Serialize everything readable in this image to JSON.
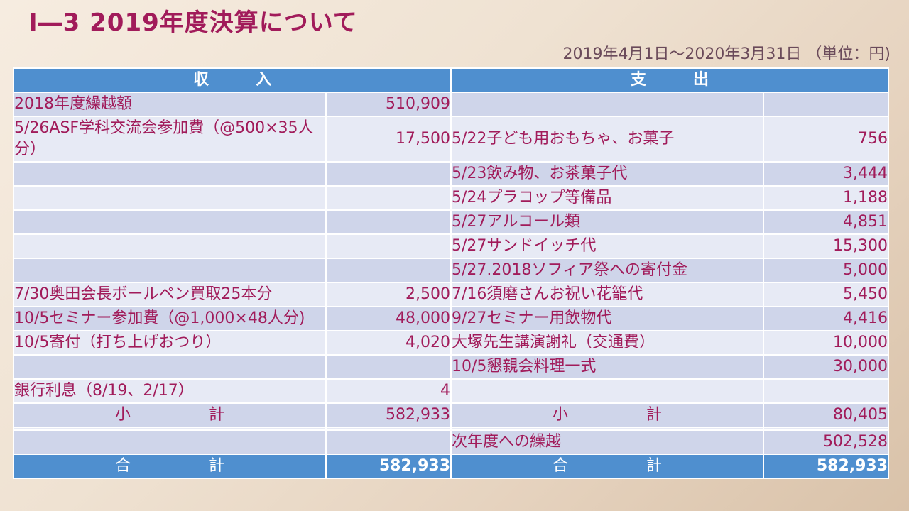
{
  "header": {
    "title": "Ⅰ―3 2019年度決算について",
    "period": "2019年4月1日～2020年3月31日 （単位：円)"
  },
  "table": {
    "columns": [
      "収　　　入",
      "支　　　出"
    ],
    "rows": [
      [
        "2018年度繰越額",
        "510,909",
        null,
        null
      ],
      [
        "5/26ASF学科交流会参加費（@500×35人分）",
        "17,500",
        "5/22子ども用おもちゃ、お菓子",
        "756"
      ],
      [
        null,
        null,
        "5/23飲み物、お茶菓子代",
        "3,444"
      ],
      [
        null,
        null,
        "5/24プラコップ等備品",
        "1,188"
      ],
      [
        null,
        null,
        "5/27アルコール類",
        "4,851"
      ],
      [
        null,
        null,
        "5/27サンドイッチ代",
        "15,300"
      ],
      [
        null,
        null,
        "5/27.2018ソフィア祭への寄付金",
        "5,000"
      ],
      [
        "7/30奥田会長ボールペン買取25本分",
        "2,500",
        "7/16須磨さんお祝い花籠代",
        "5,450"
      ],
      [
        "10/5セミナー参加費（@1,000×48人分)",
        "48,000",
        "9/27セミナー用飲物代",
        "4,416"
      ],
      [
        "10/5寄付（打ち上げおつり）",
        "4,020",
        "大塚先生講演謝礼（交通費）",
        "10,000"
      ],
      [
        null,
        null,
        "10/5懇親会料理一式",
        "30,000"
      ],
      [
        "銀行利息（8/19、2/17）",
        "4",
        null,
        null
      ],
      [
        "小　　　　　計",
        "582,933",
        "小　　　　　計",
        "80,405"
      ],
      [
        null,
        null,
        null,
        null
      ],
      [
        null,
        null,
        "次年度への繰越",
        "502,528"
      ]
    ],
    "total": [
      "合　　　　　計",
      "582,933",
      "合　　　　　計",
      "582,933"
    ]
  }
}
